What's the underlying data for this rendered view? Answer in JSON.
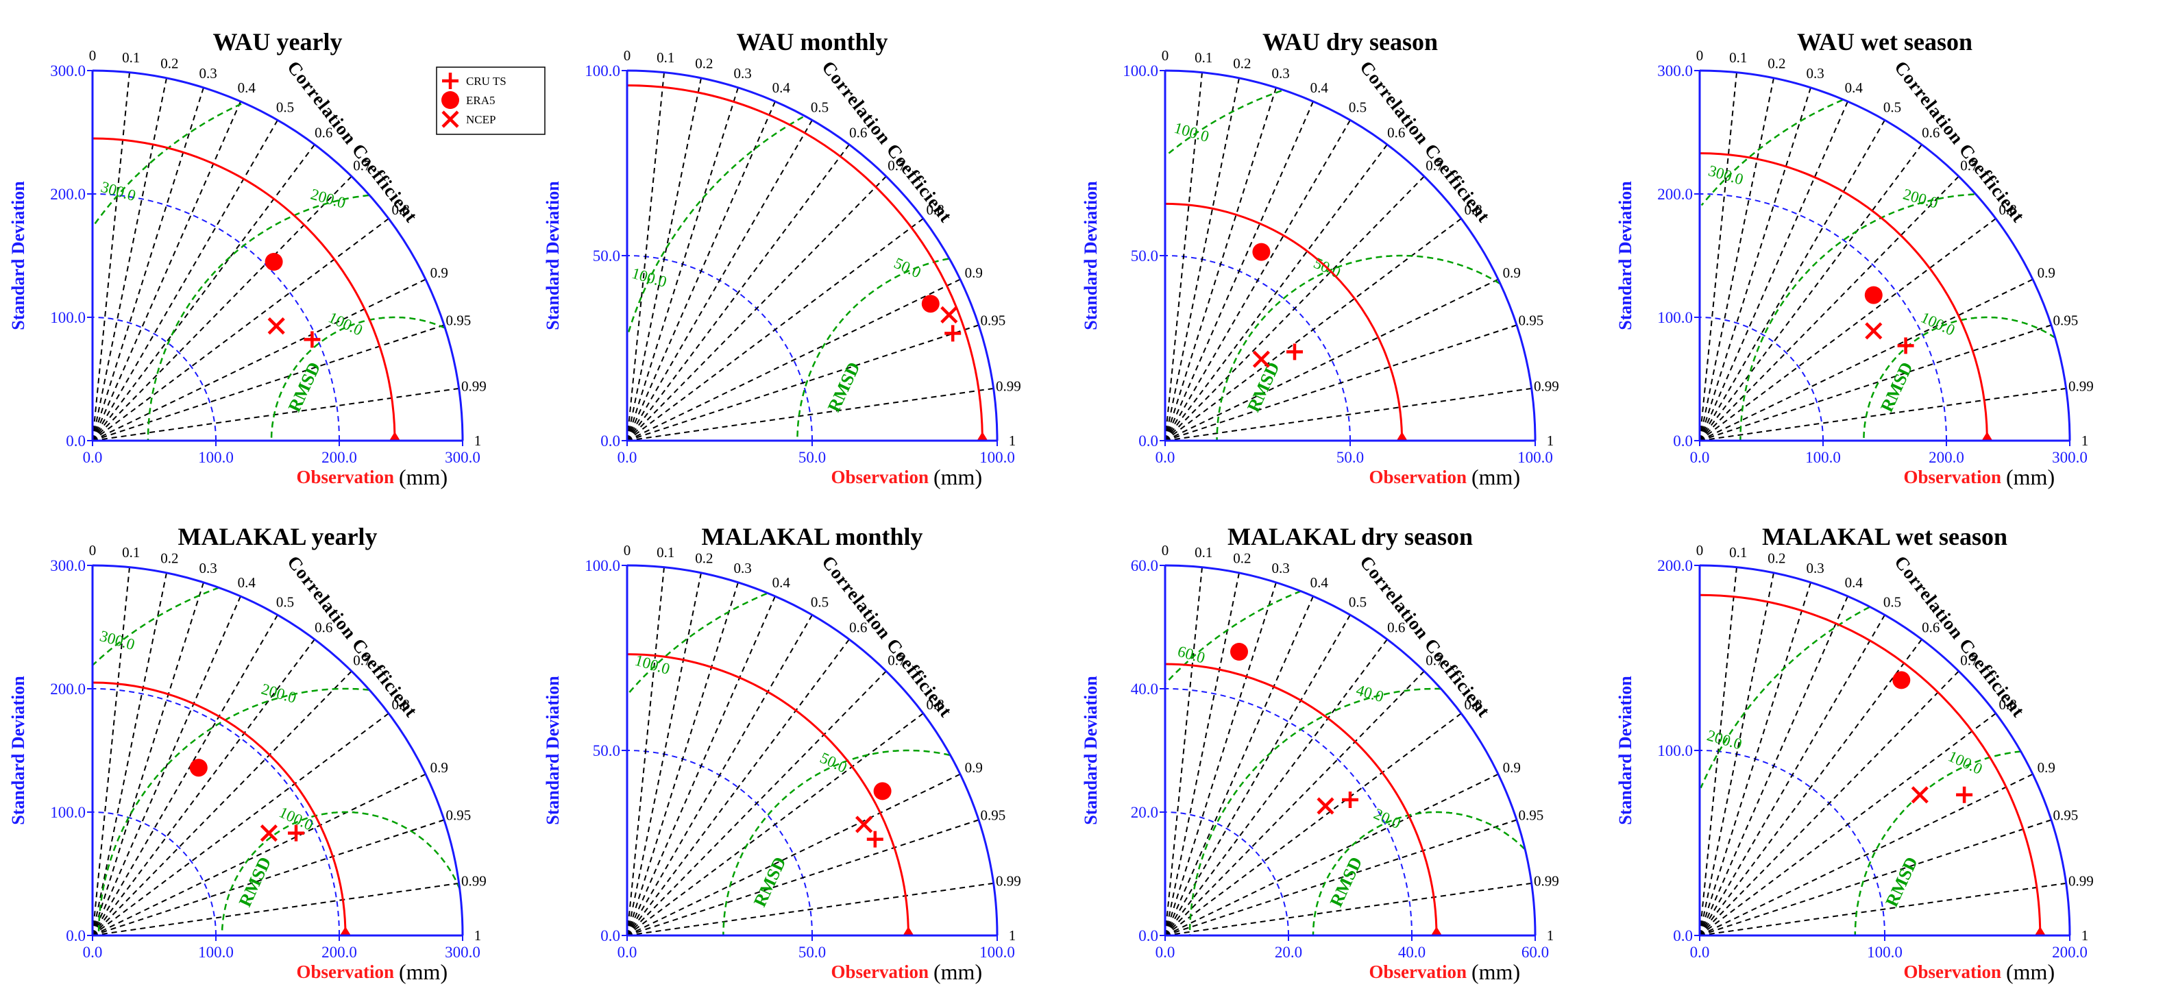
{
  "legend": {
    "items": [
      {
        "label": "CRU TS",
        "marker": "plus",
        "color": "#ff0000"
      },
      {
        "label": "ERA5",
        "marker": "circle",
        "color": "#ff0000"
      },
      {
        "label": "NCEP",
        "marker": "x",
        "color": "#ff0000"
      }
    ]
  },
  "labels": {
    "ylabel": "Standard Deviation",
    "xlabel": "Observation",
    "unit": "(mm)",
    "corr_title": "Correlation Coefficient",
    "rmsd": "RMSD",
    "corr_ticks": [
      "0",
      "0.1",
      "0.2",
      "0.3",
      "0.4",
      "0.5",
      "0.6",
      "0.7",
      "0.8",
      "0.9",
      "0.95",
      "0.99",
      "1"
    ]
  },
  "colors": {
    "axis": "#1a1aff",
    "reference": "#ff0000",
    "rms": "#00a000",
    "grid": "#000000"
  },
  "chart_data": [
    {
      "type": "taylor",
      "title": "WAU yearly",
      "max": 300,
      "ticks": [
        0,
        100,
        200,
        300
      ],
      "ref": 245,
      "rms": [
        100,
        200,
        300
      ],
      "points": {
        "CRU TS": [
          178,
          82
        ],
        "ERA5": [
          147,
          145
        ],
        "NCEP": [
          149,
          93
        ]
      }
    },
    {
      "type": "taylor",
      "title": "WAU monthly",
      "max": 100,
      "ticks": [
        0,
        50,
        100
      ],
      "ref": 96,
      "rms": [
        50,
        100
      ],
      "points": {
        "CRU TS": [
          88,
          29
        ],
        "ERA5": [
          82,
          37
        ],
        "NCEP": [
          87,
          34
        ]
      }
    },
    {
      "type": "taylor",
      "title": "WAU dry season",
      "max": 100,
      "ticks": [
        0,
        50,
        100
      ],
      "ref": 64,
      "rms": [
        50,
        100
      ],
      "points": {
        "CRU TS": [
          35,
          24
        ],
        "ERA5": [
          26,
          51
        ],
        "NCEP": [
          26,
          22
        ]
      }
    },
    {
      "type": "taylor",
      "title": "WAU wet season",
      "max": 300,
      "ticks": [
        0,
        100,
        200,
        300
      ],
      "ref": 233,
      "rms": [
        100,
        200,
        300
      ],
      "points": {
        "CRU TS": [
          167,
          77
        ],
        "ERA5": [
          141,
          118
        ],
        "NCEP": [
          141,
          89
        ]
      }
    },
    {
      "type": "taylor",
      "title": "MALAKAL yearly",
      "max": 300,
      "ticks": [
        0,
        100,
        200,
        300
      ],
      "ref": 205,
      "rms": [
        100,
        200,
        300
      ],
      "points": {
        "CRU TS": [
          165,
          83
        ],
        "ERA5": [
          86,
          136
        ],
        "NCEP": [
          143,
          83
        ]
      }
    },
    {
      "type": "taylor",
      "title": "MALAKAL monthly",
      "max": 100,
      "ticks": [
        0,
        50,
        100
      ],
      "ref": 76,
      "rms": [
        50,
        100
      ],
      "points": {
        "CRU TS": [
          67,
          26
        ],
        "ERA5": [
          69,
          39
        ],
        "NCEP": [
          64,
          30
        ]
      }
    },
    {
      "type": "taylor",
      "title": "MALAKAL dry season",
      "max": 60,
      "ticks": [
        0,
        20,
        40,
        60
      ],
      "ref": 44,
      "rms": [
        20,
        40,
        60
      ],
      "points": {
        "CRU TS": [
          30,
          22
        ],
        "ERA5": [
          12,
          46
        ],
        "NCEP": [
          26,
          21
        ]
      }
    },
    {
      "type": "taylor",
      "title": "MALAKAL wet season",
      "max": 200,
      "ticks": [
        0,
        100,
        200
      ],
      "ref": 184,
      "rms": [
        100,
        200
      ],
      "points": {
        "CRU TS": [
          143,
          76
        ],
        "ERA5": [
          109,
          138
        ],
        "NCEP": [
          119,
          76
        ]
      }
    }
  ]
}
